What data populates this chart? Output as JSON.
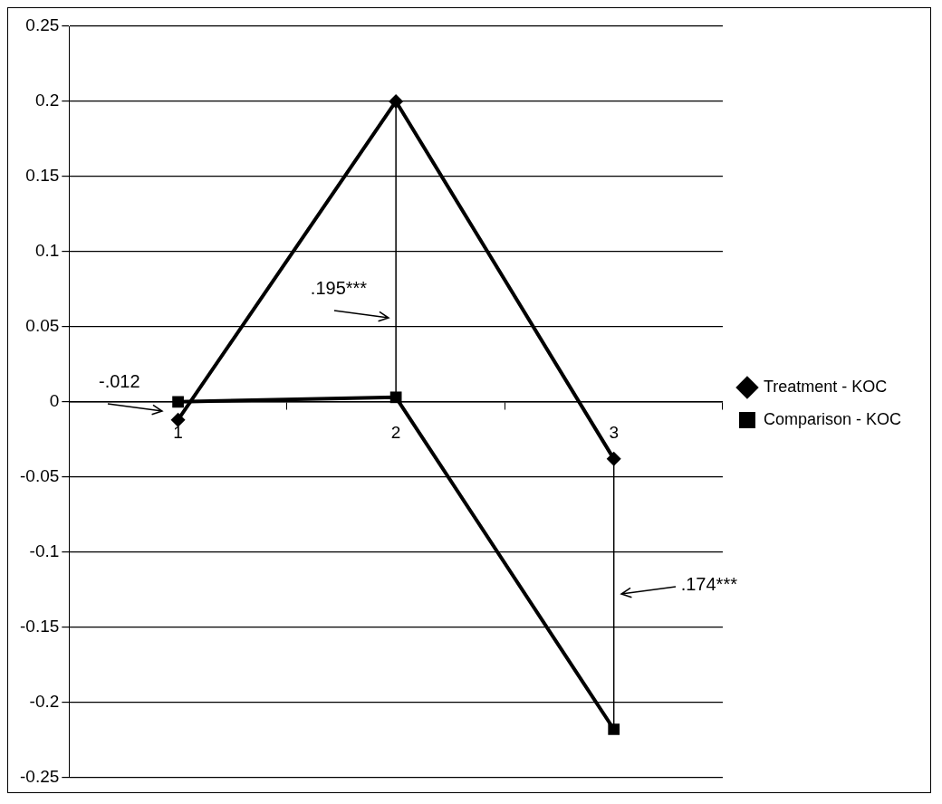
{
  "chart_data": {
    "type": "line",
    "categories": [
      "1",
      "2",
      "3"
    ],
    "series": [
      {
        "name": "Treatment - KOC",
        "color": "#000000",
        "marker": "diamond",
        "values": [
          -0.012,
          0.2,
          -0.038
        ]
      },
      {
        "name": "Comparison - KOC",
        "color": "#000000",
        "marker": "square",
        "values": [
          0,
          0.003,
          -0.218
        ]
      },
      {
        "type": "line",
        "color": "#000000",
        "marker": "none",
        "x": [
          "2",
          "2"
        ],
        "values": [
          0.2,
          0.003
        ]
      },
      {
        "type": "line",
        "color": "#000000",
        "marker": "none",
        "x": [
          "3",
          "3"
        ],
        "values": [
          -0.038,
          -0.218
        ]
      }
    ],
    "ylim": [
      -0.25,
      0.25
    ],
    "yticks": [
      -0.25,
      -0.2,
      -0.15,
      -0.1,
      -0.05,
      0,
      0.05,
      0.1,
      0.15,
      0.2,
      0.25
    ],
    "grid": "y",
    "legend": "right",
    "line_style": "solid",
    "annotations": [
      {
        "text": "-.012",
        "x": "1",
        "y": -0.006
      },
      ".195***",
      ".174***"
    ]
  }
}
